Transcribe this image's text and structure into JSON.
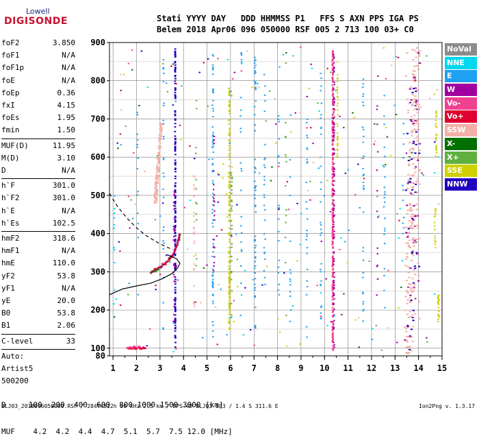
{
  "logo": {
    "top": "Lowell",
    "bottom": "DIGISONDE"
  },
  "header": {
    "line1": "Stati YYYY DAY   DDD HHMMSS P1   FFS S AXN PPS IGA PS",
    "line2": "Belem 2018 Apr06 096 050000 RSF 005 2 713 100 03+ C0"
  },
  "params": {
    "group1": [
      {
        "label": "foF2",
        "value": "3.850"
      },
      {
        "label": "foF1",
        "value": "N/A"
      },
      {
        "label": "foF1p",
        "value": "N/A"
      },
      {
        "label": "foE",
        "value": "N/A"
      },
      {
        "label": "foEp",
        "value": "0.36"
      },
      {
        "label": "fxI",
        "value": "4.15"
      },
      {
        "label": "foEs",
        "value": "1.95"
      },
      {
        "label": "fmin",
        "value": "1.50"
      }
    ],
    "group2": [
      {
        "label": "MUF(D)",
        "value": "11.95"
      },
      {
        "label": "M(D)",
        "value": "3.10"
      },
      {
        "label": "D",
        "value": "N/A"
      }
    ],
    "group3": [
      {
        "label": "h`F",
        "value": "301.0"
      },
      {
        "label": "h`F2",
        "value": "301.0"
      },
      {
        "label": "h`E",
        "value": "N/A"
      },
      {
        "label": "h`Es",
        "value": "102.5"
      }
    ],
    "group4": [
      {
        "label": "hmF2",
        "value": "318.6"
      },
      {
        "label": "hmF1",
        "value": "N/A"
      },
      {
        "label": "hmE",
        "value": "110.0"
      },
      {
        "label": "yF2",
        "value": "53.8"
      },
      {
        "label": "yF1",
        "value": "N/A"
      },
      {
        "label": "yE",
        "value": "20.0"
      },
      {
        "label": "B0",
        "value": "53.8"
      },
      {
        "label": "B1",
        "value": "2.06"
      }
    ],
    "clevel": {
      "label": "C-level",
      "value": "33"
    },
    "auto": [
      "Auto:",
      "Artist5",
      "500200"
    ]
  },
  "legend": [
    {
      "label": "NoVal",
      "color": "#8c8c8c"
    },
    {
      "label": "NNE",
      "color": "#00d8f0"
    },
    {
      "label": "E",
      "color": "#20a0f0"
    },
    {
      "label": "W",
      "color": "#a000a0"
    },
    {
      "label": "Vo-",
      "color": "#f04090"
    },
    {
      "label": "Vo+",
      "color": "#e00030"
    },
    {
      "label": "SSW",
      "color": "#f4b0a8"
    },
    {
      "label": "X-",
      "color": "#007000"
    },
    {
      "label": "X+",
      "color": "#60b040"
    },
    {
      "label": "SSE",
      "color": "#d0d000"
    },
    {
      "label": "NNW",
      "color": "#2000c0"
    }
  ],
  "bottom_table": {
    "row1": "D     100  200  400  600  800 1000 1500 3000 [km]",
    "row2": "MUF    4.2  4.2  4.4  4.7  5.1  5.7  7.5 12.0 [MHz]"
  },
  "footer": "BLJ03_2018096050000.RSF / 284fx512h 50 kHz 2.5 km / DPS-4D BLJ03 103 / 1.4 S 311.6 E",
  "version": "Ion2Png v. 1.3.17",
  "chart_data": {
    "type": "scatter",
    "x_ticks": [
      1,
      2,
      3,
      4,
      5,
      6,
      7,
      8,
      9,
      10,
      11,
      12,
      13,
      14,
      15
    ],
    "y_ticks": [
      80,
      100,
      200,
      300,
      400,
      500,
      600,
      700,
      800,
      900
    ],
    "xlim": [
      0.85,
      15
    ],
    "ylim": [
      80,
      900
    ],
    "grid": true,
    "traces": {
      "o_trace": [
        [
          2.6,
          295
        ],
        [
          2.8,
          305
        ],
        [
          3.0,
          312
        ],
        [
          3.2,
          320
        ],
        [
          3.4,
          330
        ],
        [
          3.55,
          345
        ],
        [
          3.7,
          365
        ],
        [
          3.8,
          385
        ],
        [
          3.85,
          400
        ]
      ],
      "virtual_height_solid": [
        [
          0.85,
          240
        ],
        [
          1.4,
          255
        ],
        [
          2.0,
          263
        ],
        [
          2.6,
          270
        ],
        [
          3.1,
          282
        ],
        [
          3.5,
          295
        ],
        [
          3.75,
          310
        ],
        [
          3.85,
          322
        ],
        [
          3.7,
          334
        ],
        [
          3.3,
          345
        ]
      ],
      "virtual_height_dashed": [
        [
          0.85,
          505
        ],
        [
          1.2,
          470
        ],
        [
          1.6,
          440
        ],
        [
          2.0,
          415
        ],
        [
          2.4,
          395
        ],
        [
          2.8,
          380
        ],
        [
          3.2,
          367
        ],
        [
          3.55,
          358
        ]
      ]
    }
  }
}
